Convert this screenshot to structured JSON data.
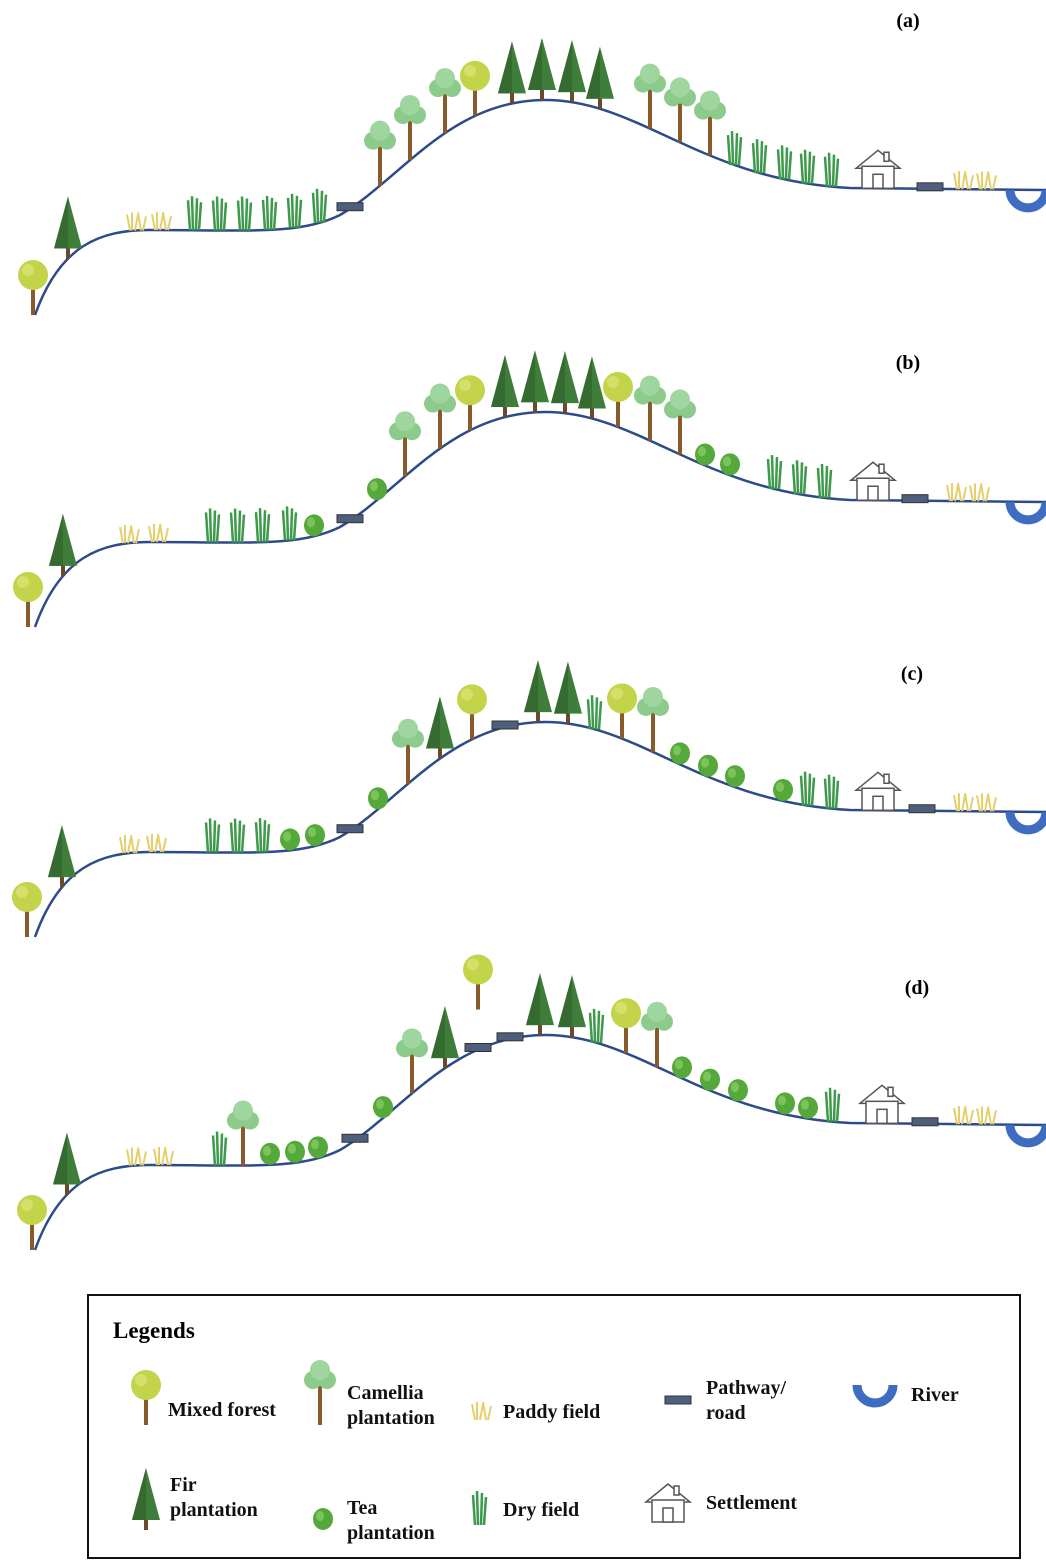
{
  "panels": [
    {
      "label": "(a)"
    },
    {
      "label": "(b)"
    },
    {
      "label": "(c)"
    },
    {
      "label": "(d)"
    }
  ],
  "legend": {
    "title": "Legends",
    "items": [
      {
        "label": "Mixed forest"
      },
      {
        "label": "Camellia plantation"
      },
      {
        "label": "Paddy field"
      },
      {
        "label": "Pathway/ road"
      },
      {
        "label": "River"
      },
      {
        "label": "Fir plantation"
      },
      {
        "label": "Tea plantation"
      },
      {
        "label": "Dry field"
      },
      {
        "label": "Settlement"
      }
    ]
  }
}
